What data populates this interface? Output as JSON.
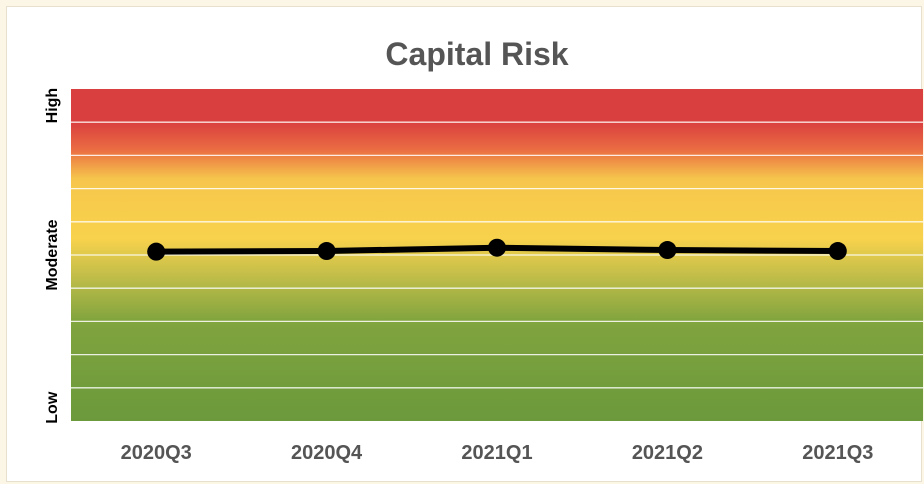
{
  "chart_data": {
    "type": "line",
    "title": "Capital Risk",
    "categories": [
      "2020Q3",
      "2020Q4",
      "2021Q1",
      "2021Q2",
      "2021Q3"
    ],
    "series": [
      {
        "values": [
          5.1,
          5.12,
          5.22,
          5.15,
          5.12
        ]
      }
    ],
    "ylim": [
      0,
      10
    ],
    "y_level_labels": [
      {
        "label": "High",
        "value": 9.5
      },
      {
        "label": "Moderate",
        "value": 5.0
      },
      {
        "label": "Low",
        "value": 0.4
      }
    ],
    "background_bands": [
      "#d93f3f",
      "#f6d24d",
      "#6f9b3e"
    ],
    "line_color": "#000000",
    "grid": true
  }
}
